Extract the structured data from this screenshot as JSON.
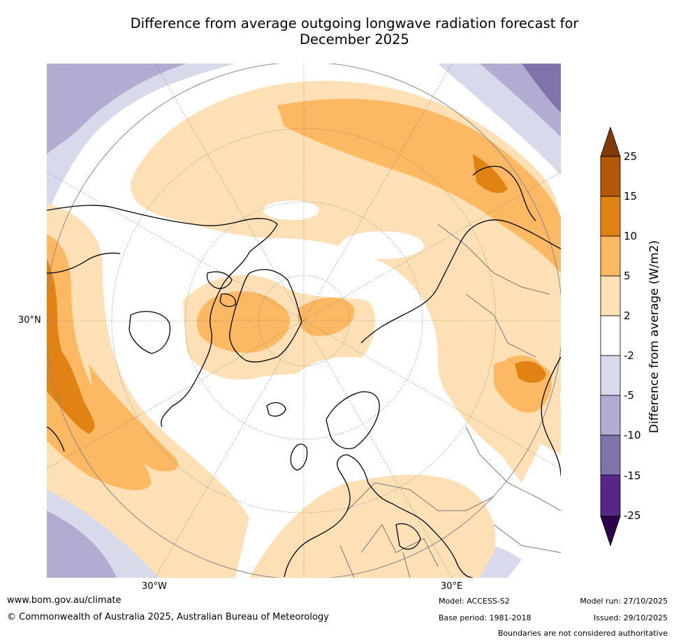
{
  "title": {
    "line1": "Difference from average outgoing longwave radiation forecast for",
    "line2": "December 2025"
  },
  "map": {
    "projection_label": "North polar stereographic",
    "lat_label": "30°N",
    "lon_labels": [
      "30°W",
      "30°E"
    ]
  },
  "colorbar": {
    "label": "Difference from average (W/m2)",
    "ticks": [
      "25",
      "15",
      "10",
      "5",
      "2",
      "-2",
      "-5",
      "-10",
      "-15",
      "-25"
    ],
    "colors": {
      "over": "#7f3b08",
      "b15_25": "#b35806",
      "b10_15": "#e08214",
      "b5_10": "#fdb863",
      "b2_5": "#fee0b6",
      "neutral": "#ffffff",
      "m5_m2": "#d8daeb",
      "m10_m5": "#b2abd2",
      "m15_m10": "#8073ac",
      "m25_m15": "#542788",
      "under": "#2d004b"
    }
  },
  "footer": {
    "url": "www.bom.gov.au/climate",
    "copyright": "© Commonwealth of Australia 2025, Australian Bureau of Meteorology",
    "model": "Model: ACCESS-S2",
    "base_period": "Base period: 1981-2018",
    "model_run": "Model run: 27/10/2025",
    "issued": "Issued: 29/10/2025",
    "disclaimer": "Boundaries are not considered authoritative"
  }
}
